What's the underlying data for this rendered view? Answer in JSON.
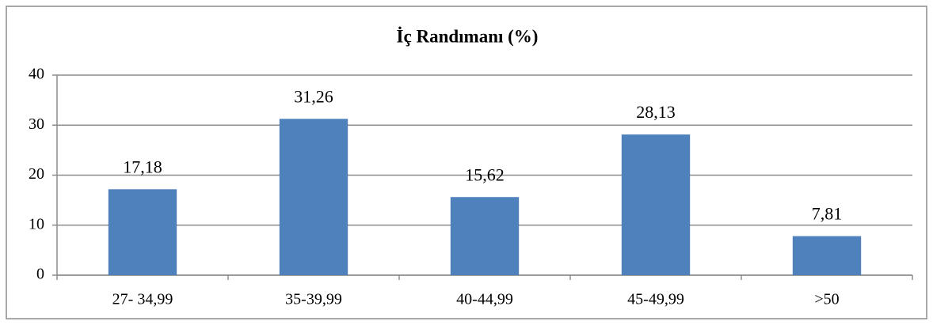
{
  "chart_data": {
    "type": "bar",
    "title": "İç Randımanı (%)",
    "categories": [
      "27- 34,99",
      "35-39,99",
      "40-44,99",
      "45-49,99",
      ">50"
    ],
    "values": [
      17.18,
      31.26,
      15.62,
      28.13,
      7.81
    ],
    "value_labels": [
      "17,18",
      "31,26",
      "15,62",
      "28,13",
      "7,81"
    ],
    "color": "#4f81bd",
    "ylim": [
      0,
      40
    ],
    "yticks": [
      0,
      10,
      20,
      30,
      40
    ],
    "grid": true
  }
}
